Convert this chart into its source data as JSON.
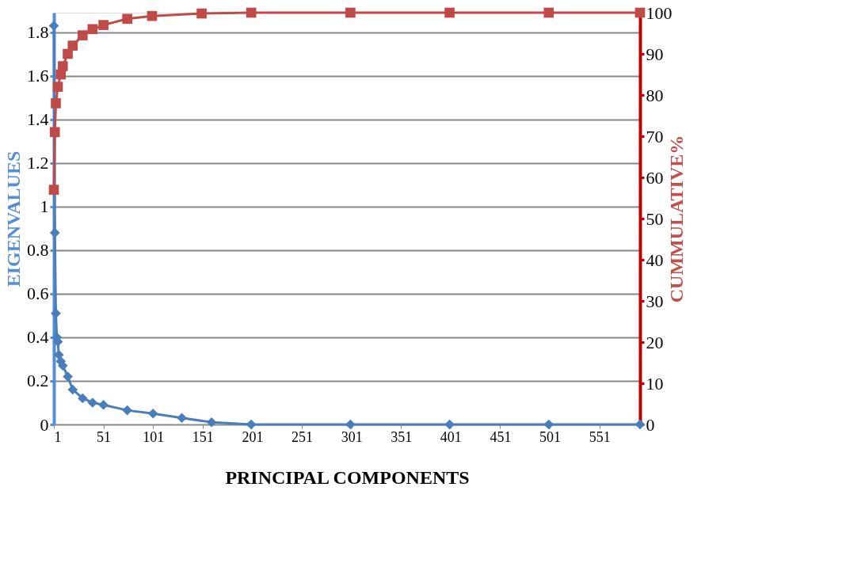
{
  "chart_data": {
    "type": "line",
    "xlabel": "PRINCIPAL COMPONENTS",
    "ylabel": "EIGENVALUES",
    "y2label": "CUMMULATIVE%",
    "xlim": [
      1,
      592
    ],
    "xticks": [
      1,
      51,
      101,
      151,
      201,
      251,
      301,
      351,
      401,
      451,
      501,
      551
    ],
    "ylim": [
      0,
      1.89
    ],
    "yticks": [
      0,
      0.2,
      0.4,
      0.6,
      0.8,
      1,
      1.2,
      1.4,
      1.6,
      1.8
    ],
    "y2lim": [
      0,
      100
    ],
    "y2ticks": [
      0,
      10,
      20,
      30,
      40,
      50,
      60,
      70,
      80,
      90,
      100
    ],
    "grid": "y",
    "line_style": "solid",
    "series": [
      {
        "color": "#4a7ebb",
        "marker": "diamond",
        "x": [
          1,
          2,
          3,
          4,
          5,
          6,
          8,
          10,
          15,
          20,
          30,
          40,
          51,
          75,
          101,
          130,
          160,
          200,
          300,
          400,
          500,
          592
        ],
        "values": [
          1.83,
          0.88,
          0.51,
          0.4,
          0.38,
          0.32,
          0.29,
          0.27,
          0.22,
          0.16,
          0.12,
          0.1,
          0.09,
          0.065,
          0.05,
          0.03,
          0.01,
          0,
          0,
          0,
          0,
          0
        ]
      },
      {
        "color": "#be4b48",
        "marker": "square",
        "axis": "y2",
        "x": [
          1,
          2,
          3,
          5,
          8,
          10,
          15,
          20,
          30,
          40,
          51,
          75,
          100,
          150,
          200,
          300,
          400,
          500,
          592
        ],
        "values": [
          57,
          71,
          78,
          82,
          85,
          87,
          90,
          92,
          94.5,
          96,
          97,
          98.5,
          99.2,
          99.8,
          100,
          100,
          100,
          100,
          100
        ]
      }
    ]
  }
}
